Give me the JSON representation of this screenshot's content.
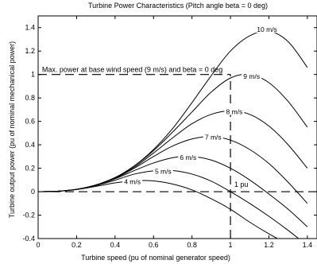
{
  "chart_data": {
    "type": "line",
    "title": "Turbine Power Characteristics (Pitch angle beta = 0 deg)",
    "xlabel": "Turbine speed (pu of nominal generator speed)",
    "ylabel": "Turbine output power (pu of nominal mechanical power)",
    "xlim": [
      0,
      1.45
    ],
    "ylim": [
      -0.4,
      1.5
    ],
    "xticks": [
      0,
      0.2,
      0.4,
      0.6,
      0.8,
      1,
      1.2,
      1.4
    ],
    "xtick_labels": [
      "0",
      "0.2",
      "0.4",
      "0.6",
      "0.8",
      "1",
      "1.2",
      "1.4"
    ],
    "yticks": [
      -0.4,
      -0.2,
      0,
      0.2,
      0.4,
      0.6,
      0.8,
      1,
      1.2,
      1.4
    ],
    "ytick_labels": [
      "-0.4",
      "-0.2",
      "0",
      "0.2",
      "0.4",
      "0.6",
      "0.8",
      "1",
      "1.2",
      "1.4"
    ],
    "grid": false,
    "legend": "none",
    "series": [
      {
        "name": "4 m/s",
        "x": [
          0,
          0.1,
          0.2,
          0.3,
          0.4,
          0.5,
          0.6,
          0.7,
          0.8,
          0.9,
          1.0,
          1.1,
          1.2,
          1.3,
          1.4
        ],
        "y": [
          0,
          0.004,
          0.018,
          0.045,
          0.075,
          0.093,
          0.092,
          0.065,
          0.015,
          -0.06,
          -0.15,
          -0.26,
          -0.36,
          -0.45,
          -0.55
        ]
      },
      {
        "name": "5 m/s",
        "x": [
          0,
          0.1,
          0.2,
          0.3,
          0.4,
          0.5,
          0.6,
          0.7,
          0.8,
          0.9,
          1.0,
          1.1,
          1.2,
          1.3,
          1.4
        ],
        "y": [
          0,
          0.004,
          0.02,
          0.052,
          0.098,
          0.15,
          0.178,
          0.18,
          0.15,
          0.09,
          0.0,
          -0.1,
          -0.21,
          -0.33,
          -0.46
        ]
      },
      {
        "name": "6 m/s",
        "x": [
          0,
          0.1,
          0.2,
          0.3,
          0.4,
          0.5,
          0.6,
          0.7,
          0.8,
          0.9,
          1.0,
          1.1,
          1.2,
          1.3,
          1.4
        ],
        "y": [
          0,
          0.004,
          0.02,
          0.055,
          0.11,
          0.18,
          0.245,
          0.29,
          0.3,
          0.27,
          0.2,
          0.1,
          -0.02,
          -0.15,
          -0.3
        ]
      },
      {
        "name": "7 m/s",
        "x": [
          0,
          0.1,
          0.2,
          0.3,
          0.4,
          0.5,
          0.6,
          0.7,
          0.8,
          0.9,
          1.0,
          1.1,
          1.2,
          1.3,
          1.4
        ],
        "y": [
          0,
          0.004,
          0.02,
          0.056,
          0.115,
          0.2,
          0.3,
          0.39,
          0.45,
          0.47,
          0.44,
          0.36,
          0.24,
          0.08,
          -0.1
        ]
      },
      {
        "name": "8 m/s",
        "x": [
          0,
          0.1,
          0.2,
          0.3,
          0.4,
          0.5,
          0.6,
          0.7,
          0.8,
          0.9,
          1.0,
          1.1,
          1.2,
          1.3,
          1.4
        ],
        "y": [
          0,
          0.004,
          0.02,
          0.057,
          0.12,
          0.21,
          0.33,
          0.46,
          0.58,
          0.66,
          0.69,
          0.66,
          0.56,
          0.4,
          0.2
        ]
      },
      {
        "name": "9 m/s",
        "x": [
          0,
          0.1,
          0.2,
          0.3,
          0.4,
          0.5,
          0.6,
          0.7,
          0.8,
          0.9,
          1.0,
          1.1,
          1.2,
          1.3,
          1.4
        ],
        "y": [
          0,
          0.004,
          0.02,
          0.057,
          0.12,
          0.22,
          0.35,
          0.51,
          0.68,
          0.85,
          0.97,
          1.0,
          0.93,
          0.77,
          0.55
        ]
      },
      {
        "name": "10 m/s",
        "x": [
          0,
          0.1,
          0.2,
          0.3,
          0.4,
          0.5,
          0.6,
          0.7,
          0.8,
          0.9,
          1.0,
          1.1,
          1.2,
          1.3,
          1.4
        ],
        "y": [
          0,
          0.004,
          0.02,
          0.057,
          0.12,
          0.22,
          0.36,
          0.54,
          0.76,
          0.99,
          1.2,
          1.33,
          1.37,
          1.28,
          1.06
        ]
      }
    ],
    "annotations": [
      {
        "text": "Max. power at base wind speed (9 m/s) and beta = 0 deg",
        "x": 0.02,
        "y": 1.02
      },
      {
        "text": "1 pu",
        "x": 1.02,
        "y": 0.04
      }
    ],
    "reference_lines": [
      {
        "type": "horizontal",
        "y": 1.0,
        "x_from": 0,
        "x_to": 1.0,
        "style": "dashed"
      },
      {
        "type": "horizontal",
        "y": 0.0,
        "x_from": 0,
        "x_to": 1.45,
        "style": "dashed"
      },
      {
        "type": "vertical",
        "x": 1.0,
        "y_from": -0.4,
        "y_to": 1.0,
        "style": "dashed"
      }
    ],
    "curve_labels": [
      {
        "text": "4 m/s",
        "x": 0.49,
        "y": 0.07
      },
      {
        "text": "5 m/s",
        "x": 0.65,
        "y": 0.16
      },
      {
        "text": "6 m/s",
        "x": 0.78,
        "y": 0.28
      },
      {
        "text": "7 m/s",
        "x": 0.91,
        "y": 0.45
      },
      {
        "text": "8 m/s",
        "x": 1.02,
        "y": 0.67
      },
      {
        "text": "9 m/s",
        "x": 1.11,
        "y": 0.97
      },
      {
        "text": "10 m/s",
        "x": 1.19,
        "y": 1.37
      }
    ]
  }
}
